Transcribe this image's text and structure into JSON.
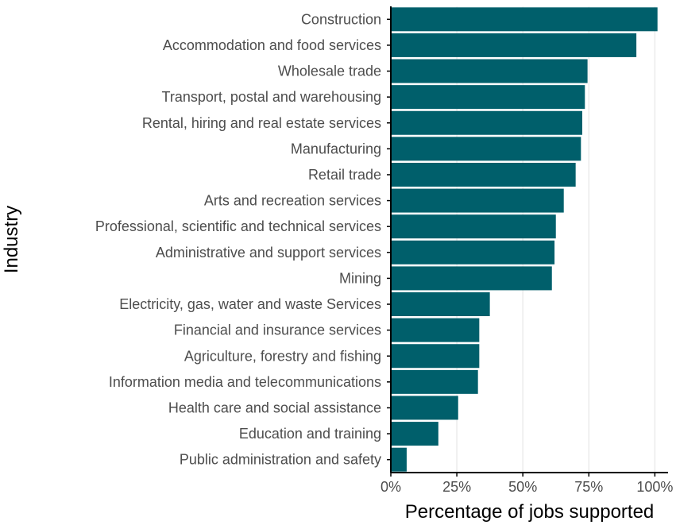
{
  "chart_data": {
    "type": "bar",
    "orientation": "horizontal",
    "title": "",
    "xlabel": "Percentage of jobs supported",
    "ylabel": "Industry",
    "xlim": [
      0,
      1.05
    ],
    "xticks": [
      0,
      0.25,
      0.5,
      0.75,
      1.0
    ],
    "xtick_labels": [
      "0%",
      "25%",
      "50%",
      "75%",
      "100%"
    ],
    "grid": "vertical major gridlines",
    "legend": "none",
    "bar_color": "#005f6b",
    "categories": [
      "Construction",
      "Accommodation and food services",
      "Wholesale trade",
      "Transport, postal and warehousing",
      "Rental, hiring and real estate services",
      "Manufacturing",
      "Retail trade",
      "Arts and recreation services",
      "Professional, scientific and technical services",
      "Administrative and support services",
      "Mining",
      "Electricity, gas, water and waste Services",
      "Financial and insurance services",
      "Agriculture, forestry and fishing",
      "Information media and telecommunications",
      "Health care and social assistance",
      "Education and training",
      "Public administration and safety"
    ],
    "values": [
      1.01,
      0.93,
      0.745,
      0.735,
      0.725,
      0.72,
      0.7,
      0.655,
      0.625,
      0.62,
      0.61,
      0.375,
      0.335,
      0.335,
      0.33,
      0.255,
      0.18,
      0.06
    ]
  }
}
